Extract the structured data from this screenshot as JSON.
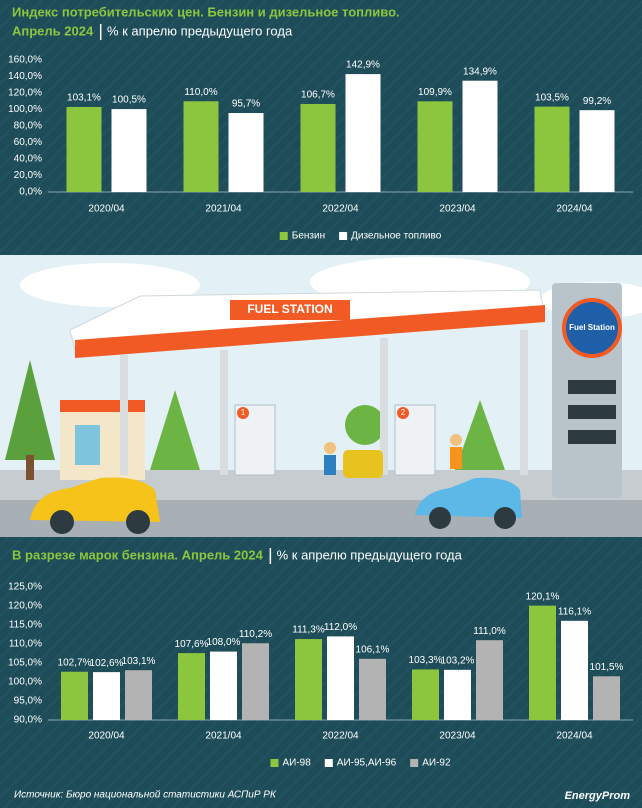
{
  "chart_data": [
    {
      "type": "bar",
      "title": "Индекс потребительских цен. Бензин и дизельное топливо.",
      "subtitle": "Апрель 2024",
      "unit_note": "% к апрелю предыдущего года",
      "categories": [
        "2020/04",
        "2021/04",
        "2022/04",
        "2023/04",
        "2024/04"
      ],
      "series": [
        {
          "name": "Бензин",
          "color": "#8cc63f",
          "values": [
            103.1,
            110.0,
            106.7,
            109.9,
            103.5
          ],
          "value_labels": [
            "103,1%",
            "110,0%",
            "106,7%",
            "109,9%",
            "103,5%"
          ]
        },
        {
          "name": "Дизельное топливо",
          "color": "#ffffff",
          "values": [
            100.5,
            95.7,
            142.9,
            134.9,
            99.2
          ],
          "value_labels": [
            "100,5%",
            "95,7%",
            "142,9%",
            "134,9%",
            "99,2%"
          ]
        }
      ],
      "ylim": [
        0,
        160
      ],
      "yticks": [
        {
          "value": 0,
          "label": "0,0%"
        },
        {
          "value": 20,
          "label": "20,0%"
        },
        {
          "value": 40,
          "label": "40,0%"
        },
        {
          "value": 60,
          "label": "60,0%"
        },
        {
          "value": 80,
          "label": "80,0%"
        },
        {
          "value": 100,
          "label": "100,0%"
        },
        {
          "value": 120,
          "label": "120,0%"
        },
        {
          "value": 140,
          "label": "140,0%"
        },
        {
          "value": 160,
          "label": "160,0%"
        }
      ],
      "grid": false,
      "legend": "bottom"
    },
    {
      "type": "bar",
      "title": "В разрезе марок бензина. Апрель 2024",
      "unit_note": "% к апрелю предыдущего года",
      "categories": [
        "2020/04",
        "2021/04",
        "2022/04",
        "2023/04",
        "2024/04"
      ],
      "series": [
        {
          "name": "АИ-98",
          "color": "#8cc63f",
          "values": [
            102.7,
            107.6,
            111.3,
            103.3,
            120.1
          ],
          "value_labels": [
            "102,7%",
            "107,6%",
            "111,3%",
            "103,3%",
            "120,1%"
          ]
        },
        {
          "name": "АИ-95,АИ-96",
          "color": "#ffffff",
          "values": [
            102.6,
            108.0,
            112.0,
            103.2,
            116.1
          ],
          "value_labels": [
            "102,6%",
            "108,0%",
            "112,0%",
            "103,2%",
            "116,1%"
          ]
        },
        {
          "name": "АИ-92",
          "color": "#b3b3b3",
          "values": [
            103.1,
            110.2,
            106.1,
            111.0,
            101.5
          ],
          "value_labels": [
            "103,1%",
            "110,2%",
            "106,1%",
            "111,0%",
            "101,5%"
          ]
        }
      ],
      "ylim": [
        90,
        125
      ],
      "yticks": [
        {
          "value": 90,
          "label": "90,0%"
        },
        {
          "value": 95,
          "label": "95,0%"
        },
        {
          "value": 100,
          "label": "100,0%"
        },
        {
          "value": 105,
          "label": "105,0%"
        },
        {
          "value": 110,
          "label": "110,0%"
        },
        {
          "value": 115,
          "label": "115,0%"
        },
        {
          "value": 120,
          "label": "120,0%"
        },
        {
          "value": 125,
          "label": "125,0%"
        }
      ],
      "grid": false,
      "legend": "bottom"
    }
  ],
  "illustration": {
    "canopy_sign": "FUEL STATION",
    "tower_sign": "Fuel Station",
    "pumps": [
      "1",
      "2"
    ]
  },
  "source": "Источник: Бюро национальной статистики АСПиР РК",
  "logo": "EnergyProm"
}
